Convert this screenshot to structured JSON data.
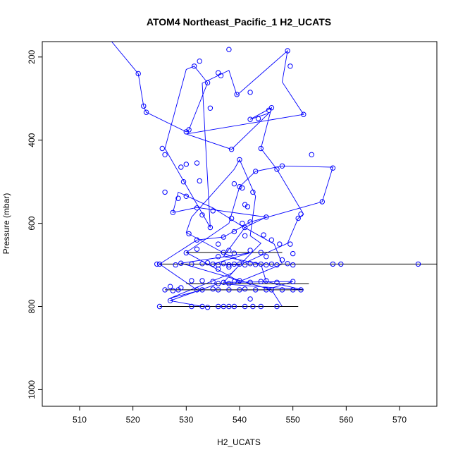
{
  "chart_data": {
    "type": "scatter",
    "title": "ATOM4 Northeast_Pacific_1 H2_UCATS",
    "xlabel": "H2_UCATS",
    "ylabel": "Pressure (mbar)",
    "xlim": [
      503,
      577
    ],
    "ylim": [
      1040,
      163
    ],
    "y_reversed": true,
    "x_ticks": [
      510,
      520,
      530,
      540,
      550,
      560,
      570
    ],
    "y_ticks": [
      200,
      400,
      600,
      800,
      1000
    ],
    "grid": false,
    "legend": "none",
    "color": "#0000ff",
    "path": [
      [
        516,
        163
      ],
      [
        521,
        240
      ],
      [
        522,
        318
      ],
      [
        522.5,
        333
      ],
      [
        530,
        380
      ],
      [
        530.5,
        375
      ],
      [
        534,
        262
      ],
      [
        531.5,
        222
      ],
      [
        530,
        230
      ],
      [
        526,
        420
      ],
      [
        534.5,
        610
      ],
      [
        533,
        263
      ],
      [
        538,
        232
      ],
      [
        539.5,
        292
      ],
      [
        549,
        185
      ],
      [
        548,
        260
      ],
      [
        552,
        338
      ],
      [
        530,
        385
      ],
      [
        538.5,
        422
      ],
      [
        545.5,
        335
      ],
      [
        542,
        350
      ],
      [
        546,
        322
      ],
      [
        544,
        420
      ],
      [
        547,
        470
      ],
      [
        552,
        578
      ],
      [
        551,
        588
      ],
      [
        549,
        648
      ],
      [
        541,
        695
      ],
      [
        537,
        671
      ],
      [
        530,
        622
      ],
      [
        531,
        585
      ],
      [
        539,
        470
      ],
      [
        540,
        447
      ],
      [
        543,
        535
      ],
      [
        542,
        630
      ],
      [
        544,
        648
      ],
      [
        538.5,
        720
      ],
      [
        527,
        780
      ],
      [
        533,
        760
      ],
      [
        545,
        760
      ],
      [
        550,
        740
      ],
      [
        537,
        742
      ],
      [
        540,
        700
      ],
      [
        535,
        698
      ],
      [
        542,
        671
      ],
      [
        529,
        696
      ],
      [
        546,
        760
      ],
      [
        548,
        800
      ],
      [
        542,
        800
      ],
      [
        533,
        800
      ],
      [
        527,
        786
      ],
      [
        536,
        745
      ],
      [
        552,
        760
      ],
      [
        545,
        740
      ],
      [
        544,
        698
      ],
      [
        537,
        680
      ],
      [
        541,
        610
      ],
      [
        545,
        585
      ],
      [
        532,
        562
      ],
      [
        527.5,
        574
      ],
      [
        528.5,
        525
      ],
      [
        535,
        563
      ],
      [
        540,
        603
      ],
      [
        546.5,
        650
      ],
      [
        548,
        698
      ],
      [
        540,
        740
      ],
      [
        534,
        698
      ],
      [
        530,
        670
      ],
      [
        538,
        600
      ],
      [
        540,
        512
      ],
      [
        543,
        475
      ],
      [
        548,
        462
      ],
      [
        557.5,
        465
      ],
      [
        555.5,
        548
      ],
      [
        542,
        597
      ],
      [
        537,
        633
      ],
      [
        532,
        640
      ],
      [
        525,
        698
      ],
      [
        532,
        760
      ]
    ],
    "bars": [
      [
        530,
        548,
        670
      ],
      [
        525,
        597,
        698
      ],
      [
        530,
        553,
        745
      ],
      [
        526,
        552,
        760
      ],
      [
        525,
        551,
        800
      ]
    ],
    "points": [
      [
        521,
        240
      ],
      [
        522,
        318
      ],
      [
        522.5,
        333
      ],
      [
        525.5,
        420
      ],
      [
        526,
        435
      ],
      [
        526,
        525
      ],
      [
        527.5,
        574
      ],
      [
        528.5,
        540
      ],
      [
        529,
        465
      ],
      [
        529.5,
        500
      ],
      [
        530,
        380
      ],
      [
        530.5,
        375
      ],
      [
        530,
        458
      ],
      [
        530,
        535
      ],
      [
        530.5,
        625
      ],
      [
        532,
        455
      ],
      [
        532.5,
        498
      ],
      [
        532,
        563
      ],
      [
        531.5,
        222
      ],
      [
        532.5,
        210
      ],
      [
        534,
        262
      ],
      [
        534.5,
        323
      ],
      [
        536,
        238
      ],
      [
        536.5,
        245
      ],
      [
        538,
        182
      ],
      [
        538.5,
        422
      ],
      [
        539,
        505
      ],
      [
        539.5,
        290
      ],
      [
        540,
        447
      ],
      [
        540,
        512
      ],
      [
        540.5,
        515
      ],
      [
        541,
        555
      ],
      [
        541.5,
        560
      ],
      [
        542,
        285
      ],
      [
        542,
        350
      ],
      [
        542.5,
        525
      ],
      [
        543,
        475
      ],
      [
        543.5,
        348
      ],
      [
        544,
        420
      ],
      [
        545.5,
        328
      ],
      [
        546,
        322
      ],
      [
        547,
        470
      ],
      [
        548,
        462
      ],
      [
        549,
        185
      ],
      [
        549.5,
        222
      ],
      [
        552,
        338
      ],
      [
        553.5,
        435
      ],
      [
        555.5,
        548
      ],
      [
        557.5,
        467
      ],
      [
        551,
        588
      ],
      [
        551.5,
        578
      ],
      [
        545,
        585
      ],
      [
        541,
        610
      ],
      [
        542,
        597
      ],
      [
        540.5,
        600
      ],
      [
        538.5,
        588
      ],
      [
        535,
        570
      ],
      [
        533,
        580
      ],
      [
        532,
        640
      ],
      [
        534.5,
        610
      ],
      [
        537,
        633
      ],
      [
        536,
        650
      ],
      [
        539,
        620
      ],
      [
        541,
        630
      ],
      [
        544.5,
        628
      ],
      [
        546,
        640
      ],
      [
        547.5,
        650
      ],
      [
        549.5,
        650
      ],
      [
        542,
        665
      ],
      [
        544,
        670
      ],
      [
        537,
        670
      ],
      [
        538,
        665
      ],
      [
        539,
        672
      ],
      [
        530,
        671
      ],
      [
        532,
        662
      ],
      [
        536,
        680
      ],
      [
        545,
        680
      ],
      [
        548,
        688
      ],
      [
        550,
        673
      ],
      [
        529,
        696
      ],
      [
        525,
        698
      ],
      [
        524.5,
        698
      ],
      [
        528,
        700
      ],
      [
        531,
        698
      ],
      [
        533,
        697
      ],
      [
        534,
        695
      ],
      [
        535,
        698
      ],
      [
        536,
        700
      ],
      [
        537,
        697
      ],
      [
        538,
        700
      ],
      [
        539,
        698
      ],
      [
        540,
        698
      ],
      [
        541,
        700
      ],
      [
        542,
        697
      ],
      [
        543,
        699
      ],
      [
        544,
        698
      ],
      [
        545,
        700
      ],
      [
        546,
        698
      ],
      [
        547,
        700
      ],
      [
        549,
        697
      ],
      [
        550,
        700
      ],
      [
        557.5,
        698
      ],
      [
        559,
        698
      ],
      [
        573.5,
        698
      ],
      [
        536,
        710
      ],
      [
        538,
        705
      ],
      [
        531,
        738
      ],
      [
        533,
        738
      ],
      [
        535,
        740
      ],
      [
        537,
        742
      ],
      [
        539,
        740
      ],
      [
        540,
        738
      ],
      [
        542,
        742
      ],
      [
        544,
        740
      ],
      [
        545,
        738
      ],
      [
        547,
        742
      ],
      [
        550,
        740
      ],
      [
        527,
        752
      ],
      [
        529,
        755
      ],
      [
        532,
        760
      ],
      [
        533,
        760
      ],
      [
        535,
        758
      ],
      [
        536,
        760
      ],
      [
        538,
        760
      ],
      [
        540,
        760
      ],
      [
        541,
        758
      ],
      [
        543,
        760
      ],
      [
        545,
        760
      ],
      [
        546,
        760
      ],
      [
        548,
        760
      ],
      [
        550,
        760
      ],
      [
        551.5,
        760
      ],
      [
        526,
        760
      ],
      [
        527.5,
        762
      ],
      [
        528.5,
        760
      ],
      [
        525,
        800
      ],
      [
        531,
        800
      ],
      [
        533,
        800
      ],
      [
        534,
        802
      ],
      [
        536,
        800
      ],
      [
        537,
        800
      ],
      [
        538,
        800
      ],
      [
        539,
        800
      ],
      [
        541,
        800
      ],
      [
        542.5,
        800
      ],
      [
        544,
        800
      ],
      [
        547,
        800
      ],
      [
        542,
        782
      ],
      [
        527,
        786
      ],
      [
        536,
        745
      ],
      [
        538,
        745
      ]
    ]
  }
}
